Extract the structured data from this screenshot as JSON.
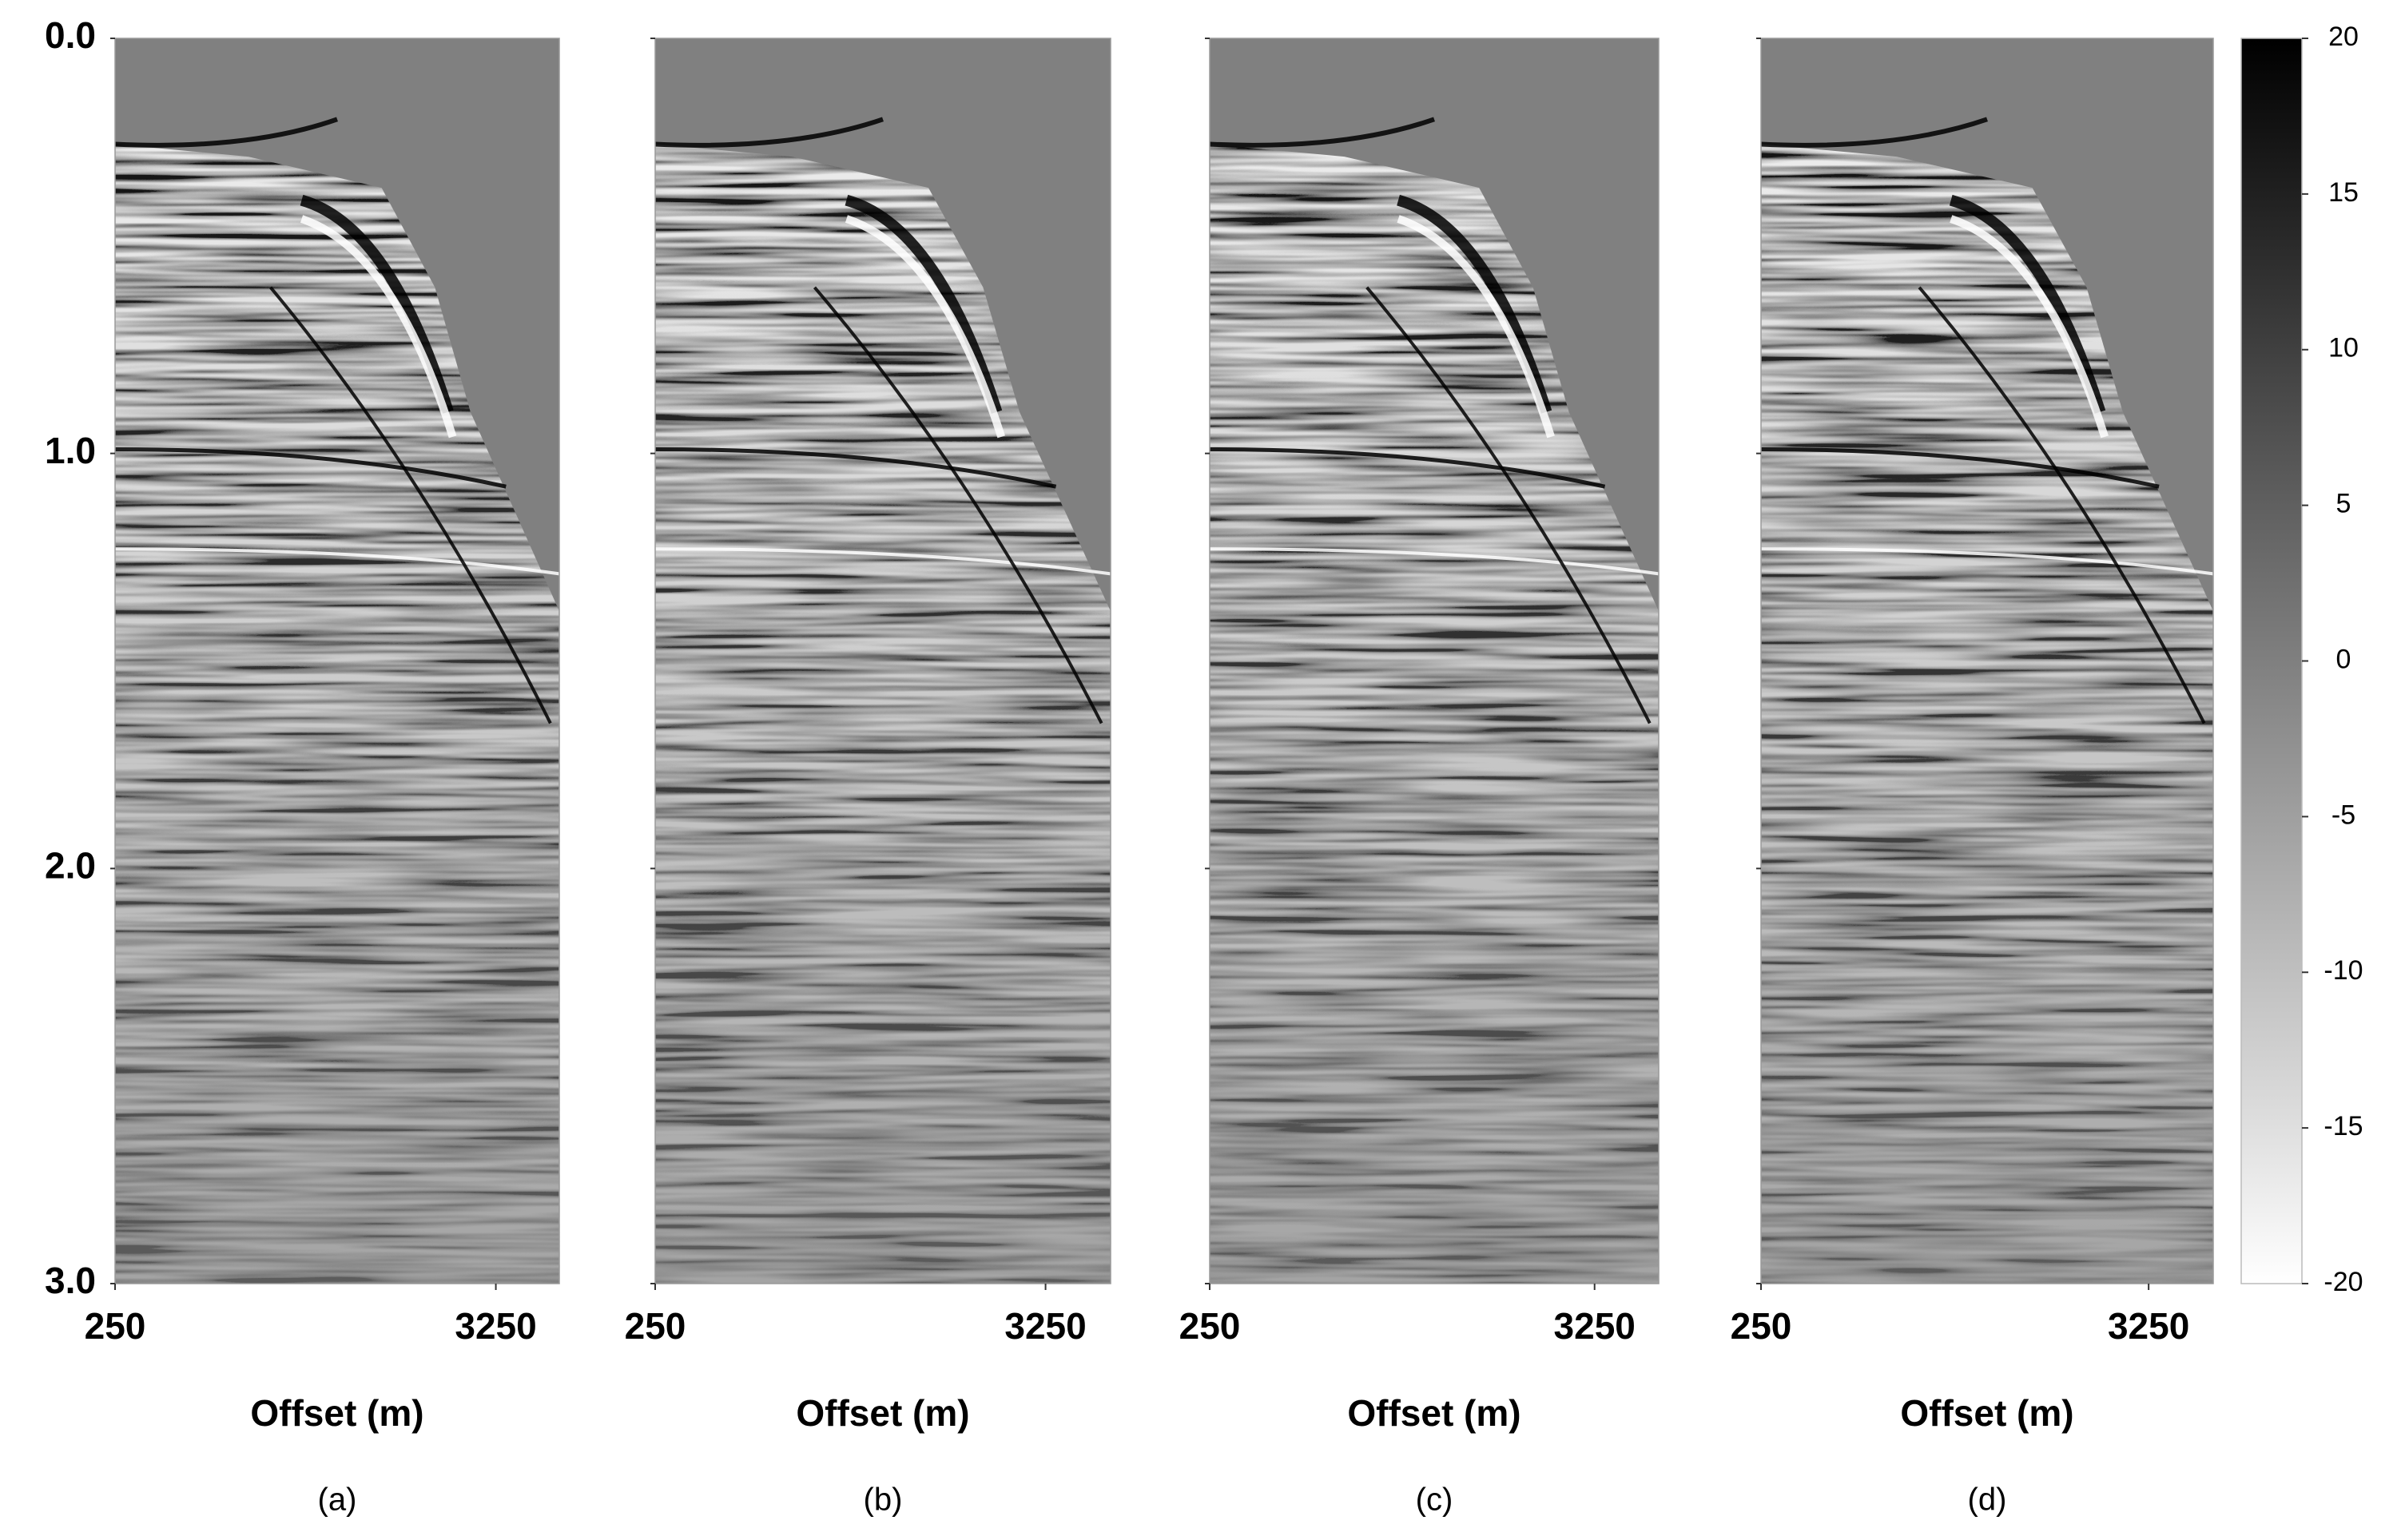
{
  "chart_data": [
    {
      "type": "seismic",
      "panel_label": "(a)",
      "xlabel": "Offset (m)",
      "xlim": [
        250,
        3750
      ],
      "xticks": [
        250,
        3250
      ],
      "ylim": [
        0,
        3
      ],
      "yticks": [
        {
          "value": 0,
          "label": "0.0"
        },
        {
          "value": 1,
          "label": "1.0"
        },
        {
          "value": 2,
          "label": "2.0"
        },
        {
          "value": 3,
          "label": "3.0"
        }
      ]
    },
    {
      "type": "seismic",
      "panel_label": "(b)",
      "xlabel": "Offset (m)",
      "xlim": [
        250,
        3750
      ],
      "xticks": [
        250,
        3250
      ],
      "ylim": [
        0,
        3
      ],
      "yticks": [
        0,
        1,
        2,
        3
      ],
      "ytick_labels": false
    },
    {
      "type": "seismic",
      "panel_label": "(c)",
      "xlabel": "Offset (m)",
      "xlim": [
        250,
        3750
      ],
      "xticks": [
        250,
        3250
      ],
      "ylim": [
        0,
        3
      ],
      "yticks": [
        0,
        1,
        2,
        3
      ],
      "ytick_labels": false
    },
    {
      "type": "seismic",
      "panel_label": "(d)",
      "xlabel": "Offset (m)",
      "xlim": [
        250,
        3750
      ],
      "xticks": [
        250,
        3250
      ],
      "ylim": [
        0,
        3
      ],
      "yticks": [
        0,
        1,
        2,
        3
      ],
      "ytick_labels": false
    },
    {
      "type": "colorbar",
      "clim": [
        -20,
        20
      ],
      "ticks": [
        20,
        15,
        10,
        5,
        0,
        -5,
        -10,
        -15,
        -20
      ],
      "colors": [
        "#ffffff",
        "#000000"
      ]
    }
  ]
}
